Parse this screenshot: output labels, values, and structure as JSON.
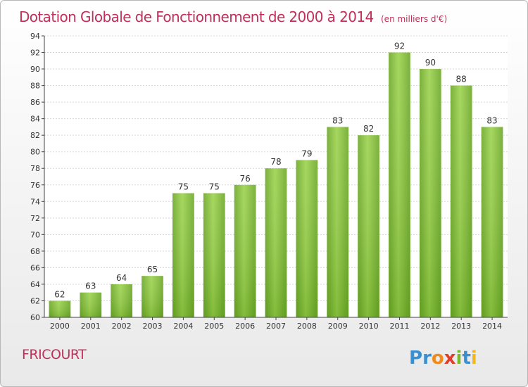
{
  "chart_data": {
    "type": "bar",
    "title": "Dotation Globale de Fonctionnement de 2000 à 2014",
    "subtitle": "(en milliers d'€)",
    "categories": [
      "2000",
      "2001",
      "2002",
      "2003",
      "2004",
      "2005",
      "2006",
      "2007",
      "2008",
      "2009",
      "2010",
      "2011",
      "2012",
      "2013",
      "2014"
    ],
    "values": [
      62,
      63,
      64,
      65,
      75,
      75,
      76,
      78,
      79,
      83,
      82,
      92,
      90,
      88,
      83
    ],
    "ylim": [
      60,
      94
    ],
    "yticks": [
      60,
      62,
      64,
      66,
      68,
      70,
      72,
      74,
      76,
      78,
      80,
      82,
      84,
      86,
      88,
      90,
      92,
      94
    ],
    "grid": true,
    "bar_color": "#7ab82e",
    "title_color": "#c0305a"
  },
  "footer": {
    "place": "FRICOURT",
    "logo_text": "Proxiti"
  }
}
